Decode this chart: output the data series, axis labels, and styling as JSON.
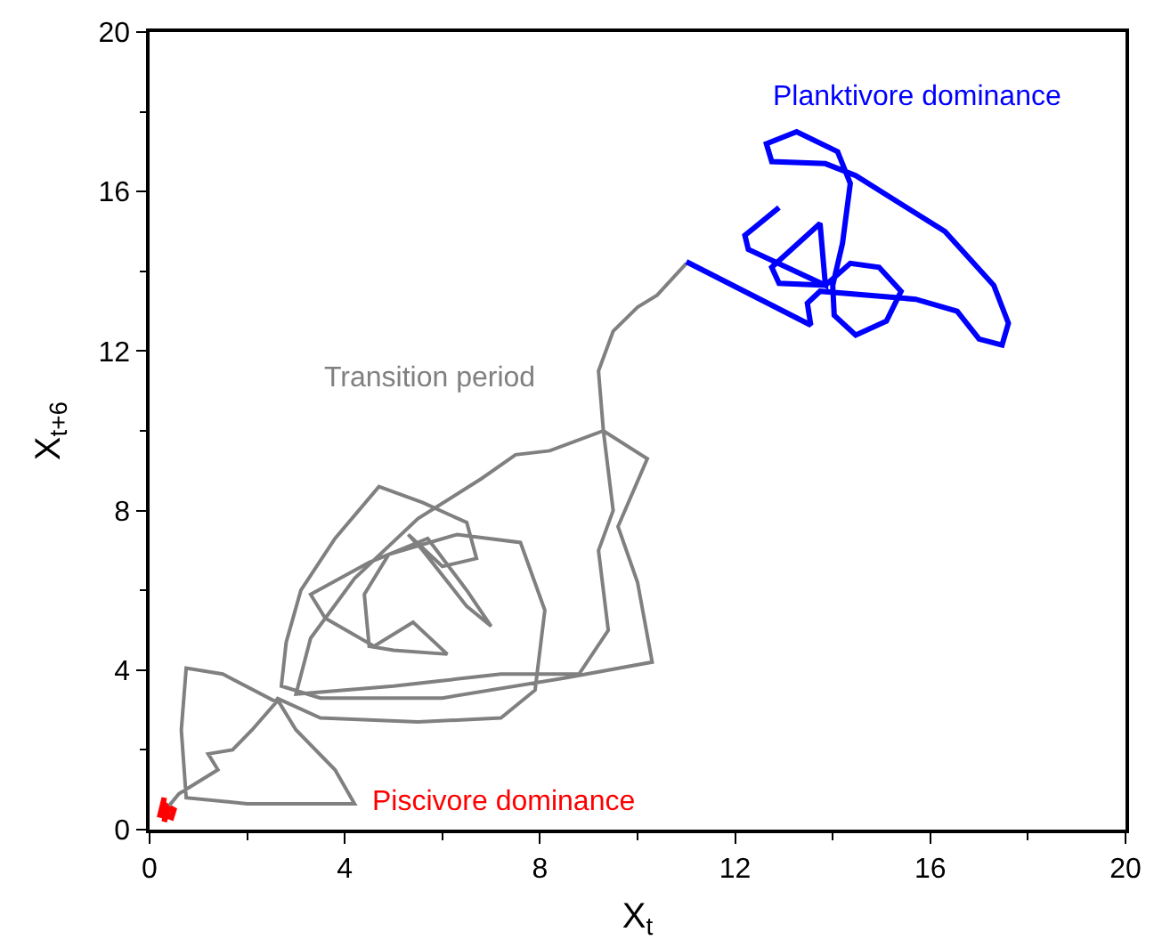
{
  "chart_data": {
    "type": "line",
    "xlabel": "X$_{t}$",
    "ylabel": "X$_{t+6}$",
    "xlim": [
      0,
      20
    ],
    "ylim": [
      0,
      20
    ],
    "xticks": [
      0,
      4,
      8,
      12,
      16,
      20
    ],
    "yticks": [
      0,
      4,
      8,
      12,
      16,
      20
    ],
    "grid": false,
    "legend": false,
    "marker": "none",
    "line_style": "solid",
    "series": [
      {
        "name": "Piscivore dominance",
        "color": "#ff0000",
        "x": [
          0.2,
          0.3,
          0.25,
          0.45,
          0.5,
          0.35,
          0.3,
          0.4
        ],
        "values": [
          0.3,
          0.8,
          0.4,
          0.3,
          0.5,
          0.6,
          0.2,
          0.55
        ]
      },
      {
        "name": "Transition period",
        "color": "#808080",
        "x": [
          0.4,
          0.6,
          1.0,
          1.4,
          1.2,
          1.7,
          2.1,
          2.6,
          1.5,
          0.75,
          0.65,
          0.75,
          2.0,
          4.2,
          3.8,
          3.0,
          2.6,
          3.5,
          5.5,
          7.2,
          7.9,
          8.1,
          7.6,
          6.3,
          4.9,
          4.4,
          4.5,
          5.0,
          6.1,
          5.4,
          4.6,
          3.6,
          3.3,
          4.5,
          5.7,
          6.5,
          7.0,
          6.5,
          5.6,
          5.3,
          6.0,
          6.7,
          6.5,
          5.6,
          4.7,
          3.8,
          3.1,
          2.8,
          2.7,
          3.5,
          6.0,
          8.5,
          10.3,
          10.0,
          9.6,
          10.2,
          9.3,
          8.2,
          7.5,
          6.8,
          5.5,
          4.2,
          3.3,
          3.0,
          5.0,
          7.2,
          8.8,
          9.4,
          9.2,
          9.5,
          9.3,
          9.2,
          9.5,
          10.0,
          10.4,
          11.0
        ],
        "values": [
          0.6,
          0.9,
          1.2,
          1.5,
          1.9,
          2.0,
          2.5,
          3.2,
          3.9,
          4.05,
          2.5,
          0.8,
          0.65,
          0.65,
          1.5,
          2.5,
          3.3,
          2.8,
          2.7,
          2.8,
          3.5,
          5.5,
          7.2,
          7.4,
          6.9,
          5.9,
          4.6,
          4.5,
          4.4,
          5.2,
          4.6,
          5.3,
          5.9,
          6.7,
          7.3,
          6.0,
          5.1,
          5.6,
          7.0,
          7.4,
          6.6,
          6.8,
          7.7,
          8.2,
          8.6,
          7.3,
          6.0,
          4.7,
          3.6,
          3.3,
          3.3,
          3.8,
          4.2,
          6.2,
          7.6,
          9.3,
          10.0,
          9.5,
          9.4,
          8.8,
          7.8,
          6.3,
          4.8,
          3.4,
          3.6,
          3.9,
          3.9,
          5.0,
          7.0,
          8.0,
          10.0,
          11.5,
          12.5,
          13.1,
          13.4,
          14.2
        ]
      },
      {
        "name": "Planktivore dominance",
        "color": "#0000ff",
        "x": [
          11.0,
          13.55,
          13.48,
          13.74,
          15.7,
          16.55,
          17.0,
          17.47,
          17.6,
          17.3,
          16.3,
          14.47,
          13.85,
          12.75,
          12.64,
          13.26,
          14.1,
          14.36,
          14.2,
          14.0,
          14.03,
          14.47,
          15.1,
          15.4,
          14.95,
          14.36,
          13.85,
          12.9,
          12.75,
          13.74,
          13.85,
          12.27,
          12.2,
          12.9
        ],
        "values": [
          14.24,
          12.65,
          13.2,
          13.5,
          13.3,
          13.0,
          12.3,
          12.15,
          12.7,
          13.65,
          15.0,
          16.4,
          16.7,
          16.75,
          17.2,
          17.5,
          17.0,
          16.2,
          14.7,
          13.65,
          12.9,
          12.4,
          12.75,
          13.5,
          14.1,
          14.2,
          13.65,
          13.7,
          14.1,
          15.2,
          13.65,
          14.55,
          14.9,
          15.6
        ]
      }
    ]
  }
}
